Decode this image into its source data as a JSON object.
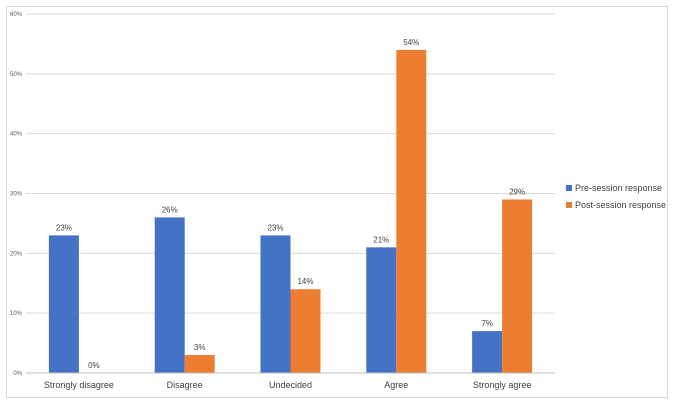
{
  "chart_data": {
    "type": "bar",
    "categories": [
      "Strongly disagree",
      "Disagree",
      "Undecided",
      "Agree",
      "Strongly agree"
    ],
    "series": [
      {
        "name": "Pre-session response",
        "color": "#4472c4",
        "values": [
          23,
          26,
          23,
          21,
          7
        ],
        "labels": [
          "23%",
          "26%",
          "23%",
          "21%",
          "7%"
        ]
      },
      {
        "name": "Post-session response",
        "color": "#ed7d31",
        "values": [
          0,
          3,
          14,
          54,
          29
        ],
        "labels": [
          "0%",
          "3%",
          "14%",
          "54%",
          "29%"
        ]
      }
    ],
    "y_ticks": [
      "0%",
      "10%",
      "20%",
      "30%",
      "40%",
      "50%",
      "60%"
    ],
    "ylim": [
      0,
      60
    ],
    "grid": true,
    "legend_position": "right",
    "title": "",
    "xlabel": "",
    "ylabel": ""
  }
}
